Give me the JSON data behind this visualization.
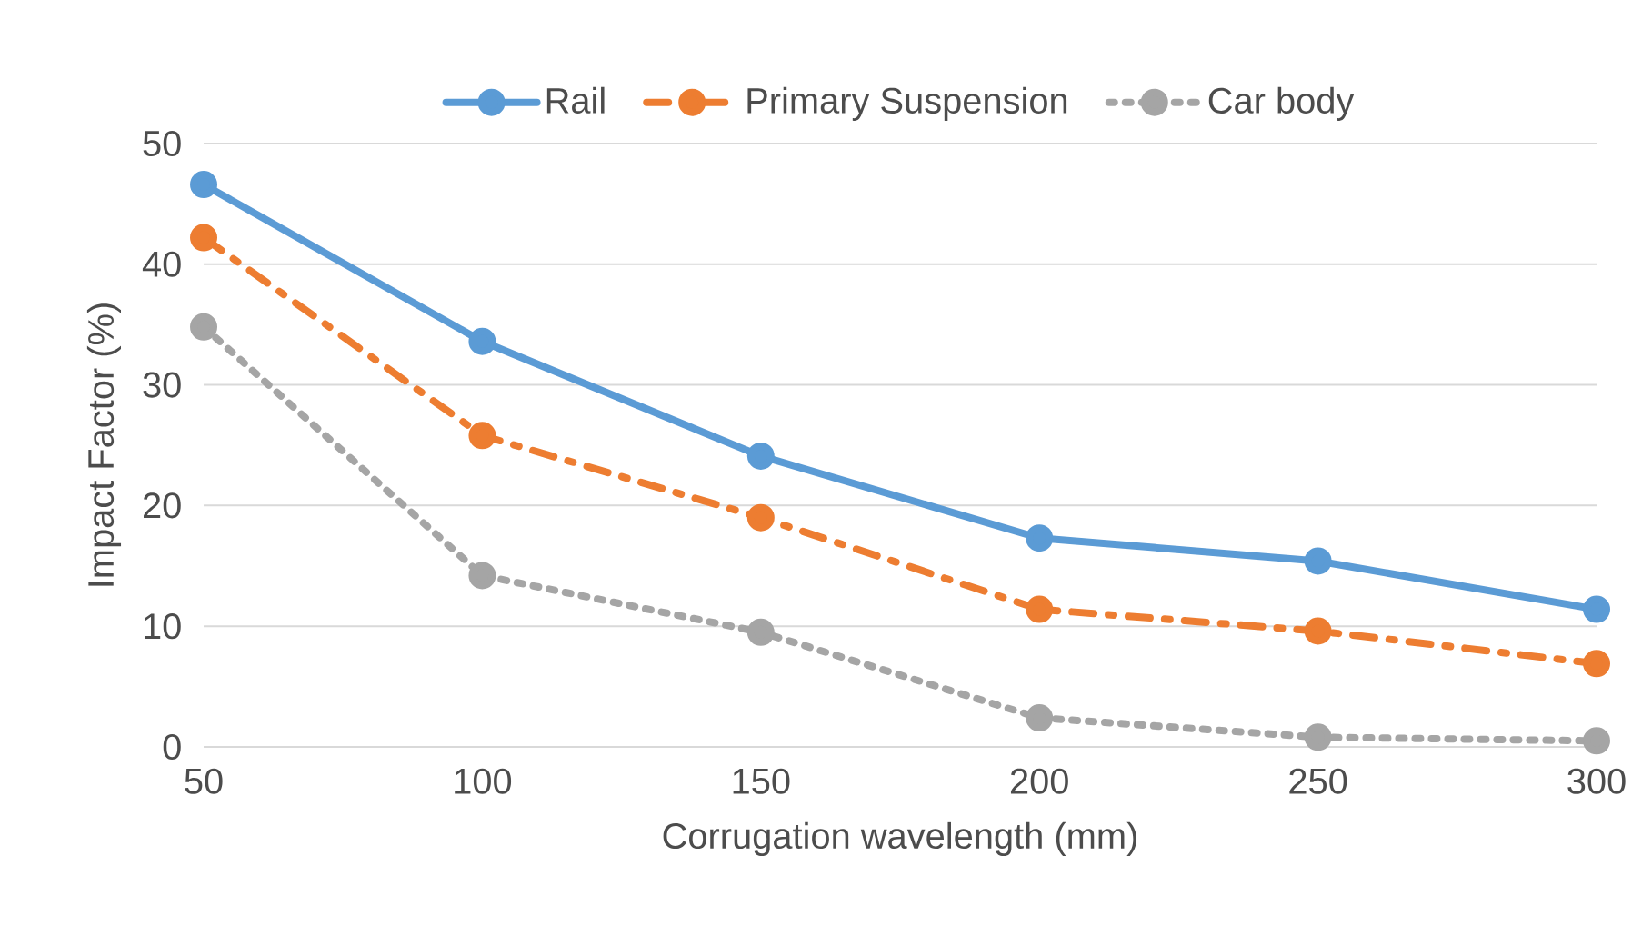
{
  "chart_data": {
    "type": "line",
    "xlabel": "Corrugation wavelength (mm)",
    "ylabel": "Impact Factor (%)",
    "categories": [
      "50",
      "100",
      "150",
      "200",
      "250",
      "300"
    ],
    "series": [
      {
        "name": "Rail",
        "color": "#5b9bd5",
        "values": [
          46.6,
          33.6,
          24.1,
          17.3,
          15.4,
          11.4
        ],
        "line_style": "solid"
      },
      {
        "name": "Primary Suspension",
        "color": "#ed7d31",
        "values": [
          42.2,
          25.8,
          19.0,
          11.4,
          9.6,
          6.9
        ],
        "line_style": "dashed"
      },
      {
        "name": "Car body",
        "color": "#a5a5a5",
        "values": [
          34.8,
          14.2,
          9.5,
          2.4,
          0.8,
          0.5
        ],
        "line_style": "dotted"
      }
    ],
    "ylim": [
      0,
      50
    ],
    "yticks": [
      0,
      10,
      20,
      30,
      40,
      50
    ],
    "grid": "y",
    "legend": "top",
    "marker": "circle"
  }
}
